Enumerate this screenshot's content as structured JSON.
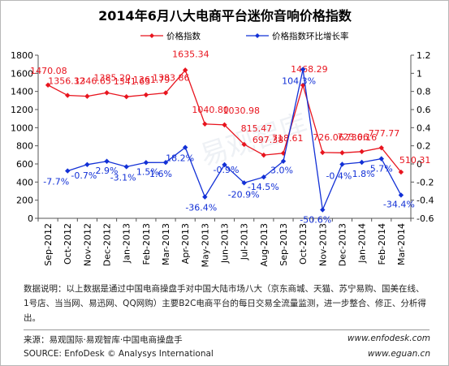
{
  "chart_data": {
    "type": "line",
    "title": "2014年6月八大电商平台迷你音响价格指数",
    "categories": [
      "Sep-2012",
      "Oct-2012",
      "Nov-2012",
      "Dec-2012",
      "Jan-2013",
      "Feb-2013",
      "Mar-2013",
      "Apr-2013",
      "May-2013",
      "Jun-2013",
      "Jul-2013",
      "Aug-2013",
      "Sep-2013",
      "Oct-2013",
      "Nov-2013",
      "Dec-2013",
      "Jan-2014",
      "Feb-2014",
      "Mar-2014"
    ],
    "series": [
      {
        "name": "价格指数",
        "axis": "left",
        "color": "#e8141e",
        "marker": "diamond",
        "values": [
          1470.08,
          1356.32,
          1346.65,
          1385.2,
          1341.63,
          1361.79,
          1383.86,
          1635.34,
          1040.8,
          1030.98,
          815.47,
          697.38,
          718.61,
          1468.29,
          726.06,
          723.06,
          736.16,
          777.77,
          510.31
        ],
        "labels": [
          "1470.08",
          "1356.32",
          "1346.65",
          "1385.20",
          "1341.63",
          "1361.79",
          "1383.86",
          "1635.34",
          "1040.80",
          "1030.98",
          "815.47",
          "697.38",
          "718.61",
          "1468.29",
          "726.06",
          "723.06",
          "736.16",
          "777.77",
          "510.31"
        ]
      },
      {
        "name": "价格指数环比增长率",
        "axis": "right",
        "color": "#1230d6",
        "marker": "diamond",
        "values": [
          null,
          -0.077,
          -0.007,
          0.029,
          -0.031,
          0.015,
          0.016,
          0.182,
          -0.364,
          -0.009,
          -0.209,
          -0.145,
          0.03,
          1.043,
          -0.506,
          -0.004,
          0.018,
          0.057,
          -0.344
        ],
        "labels": [
          "",
          "-7.7%",
          "-0.7%",
          "2.9%",
          "-3.1%",
          "1.5%",
          "1.6%",
          "18.2%",
          "-36.4%",
          "-0.9%",
          "-20.9%",
          "-14.5%",
          "3.0%",
          "104.3%",
          "-50.6%",
          "-0.4%",
          "1.8%",
          "5.7%",
          "-34.4%"
        ]
      }
    ],
    "y_left": {
      "min": 0,
      "max": 1800,
      "ticks": [
        "0",
        "200",
        "400",
        "600",
        "800",
        "1000",
        "1200",
        "1400",
        "1600",
        "1800"
      ]
    },
    "y_right": {
      "min": -0.6,
      "max": 1.2,
      "ticks": [
        "-0.6",
        "-0.4",
        "-0.2",
        "0",
        "0.2",
        "0.4",
        "0.6",
        "0.8",
        "1",
        "1.2"
      ]
    },
    "legend_position": "top",
    "grid": false,
    "watermark": "易观智库"
  },
  "notes": {
    "description": "数据说明：以上数据是通过中国电商操盘手对中国大陆市场八大（京东商城、天猫、苏宁易购、国美在线、1号店、当当网、易迅网、QQ网购）主要B2C电商平台的每日交易全流量监测，进一步整合、修正、分析得出。",
    "source_cn": "来源：易观国际·易观智库·中国电商操盘手",
    "source_en": "SOURCE: EnfoDesk © Analysys International",
    "url1": "www.enfodesk.com",
    "url2": "www.eguan.cn"
  }
}
